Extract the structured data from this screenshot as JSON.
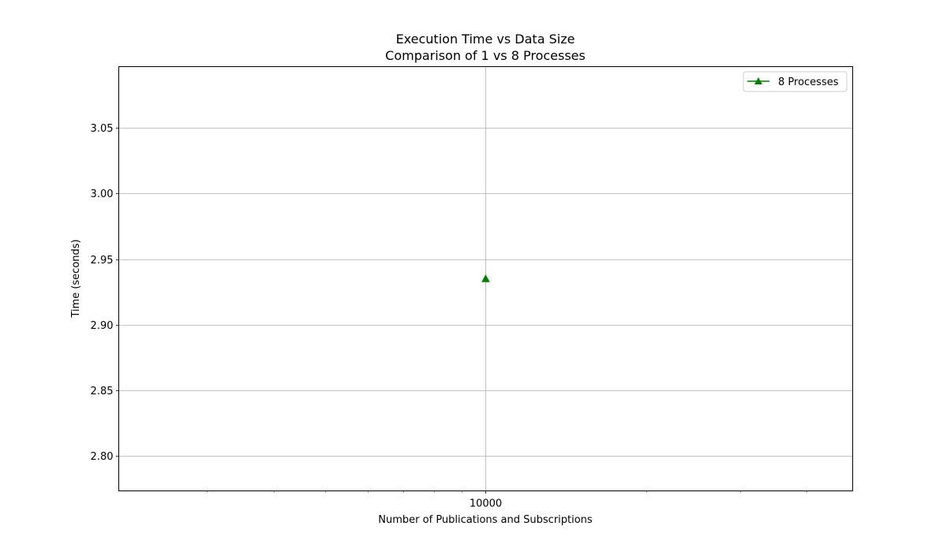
{
  "chart_data": {
    "type": "line",
    "title": "Execution Time vs Data Size",
    "subtitle": "Comparison of 1 vs 8 Processes",
    "xlabel": "Number of Publications and Subscriptions",
    "ylabel": "Time (seconds)",
    "x_scale": "log",
    "xlim": [
      2050,
      48800
    ],
    "ylim": [
      2.7735,
      3.0965
    ],
    "x_major_ticks": [
      10000
    ],
    "x_major_tick_labels": [
      "10000"
    ],
    "x_minor_ticks": [
      2000,
      3000,
      4000,
      5000,
      6000,
      7000,
      8000,
      9000,
      20000,
      30000,
      40000,
      50000
    ],
    "y_ticks": [
      2.8,
      2.85,
      2.9,
      2.95,
      3.0,
      3.05
    ],
    "y_tick_labels": [
      "2.80",
      "2.85",
      "2.90",
      "2.95",
      "3.00",
      "3.05"
    ],
    "grid": true,
    "legend_position": "top-right",
    "series": [
      {
        "name": "8 Processes",
        "color": "#008000",
        "marker": "triangle-up",
        "x": [
          10000
        ],
        "y": [
          2.935
        ]
      }
    ]
  }
}
